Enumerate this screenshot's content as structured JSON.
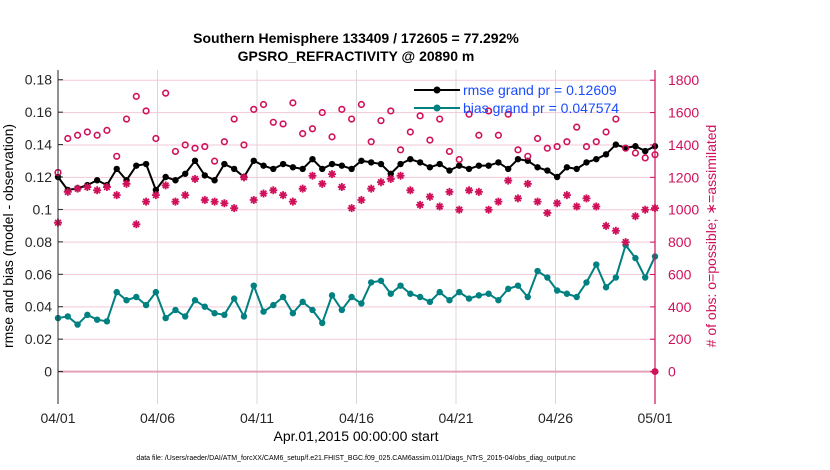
{
  "chart_data": {
    "type": "line",
    "title": "Southern Hemisphere 133409 / 172605 = 77.292%",
    "subtitle": "GPSRO_REFRACTIVITY @ 20890 m",
    "xlabel": "Apr.01,2015 00:00:00 start",
    "ylabel": "rmse and bias (model - observation)",
    "ylabel_right": "# of obs: o=possible; ∗=assimilated",
    "footnote": "data file: /Users/raeder/DAI/ATM_forcXX/CAM6_setup/f.e21.FHIST_BGC.f09_025.CAM6assim.011/Diags_NTrS_2015-04/obs_diag_output.nc",
    "x_range_days": [
      0,
      30
    ],
    "x_ticks": [
      {
        "day": 0,
        "label": "04/01"
      },
      {
        "day": 5,
        "label": "04/06"
      },
      {
        "day": 10,
        "label": "04/11"
      },
      {
        "day": 15,
        "label": "04/16"
      },
      {
        "day": 20,
        "label": "04/21"
      },
      {
        "day": 25,
        "label": "04/26"
      },
      {
        "day": 30,
        "label": "05/01"
      }
    ],
    "ylim": [
      -0.02,
      0.186
    ],
    "y_ticks": [
      "0",
      "0.02",
      "0.04",
      "0.06",
      "0.08",
      "0.1",
      "0.12",
      "0.14",
      "0.16",
      "0.18"
    ],
    "ylim_right": [
      -200,
      1863
    ],
    "y_ticks_right": [
      "0",
      "200",
      "400",
      "600",
      "800",
      "1000",
      "1200",
      "1400",
      "1600",
      "1800"
    ],
    "legend_position": "top-right",
    "legend": [
      "rmse grand pr = 0.12609",
      "bias grand pr = 0.047574"
    ],
    "colors": {
      "rmse": "#000000",
      "bias": "#008080",
      "obs": "#d0105a",
      "legend_text": "#1a4cff",
      "grid_h": "#f3c9d8",
      "grid_v": "#d8d8d8"
    },
    "series": [
      {
        "name": "rmse",
        "axis": "left",
        "style": "line-dot",
        "values": [
          0.12,
          0.112,
          0.113,
          0.115,
          0.118,
          0.115,
          0.125,
          0.118,
          0.127,
          0.128,
          0.112,
          0.12,
          0.118,
          0.122,
          0.13,
          0.121,
          0.118,
          0.128,
          0.125,
          0.12,
          0.13,
          0.127,
          0.125,
          0.128,
          0.126,
          0.125,
          0.131,
          0.125,
          0.128,
          0.127,
          0.125,
          0.13,
          0.129,
          0.128,
          0.122,
          0.128,
          0.131,
          0.129,
          0.126,
          0.128,
          0.124,
          0.127,
          0.125,
          0.127,
          0.127,
          0.129,
          0.125,
          0.131,
          0.13,
          0.126,
          0.124,
          0.12,
          0.126,
          0.125,
          0.129,
          0.131,
          0.134,
          0.14,
          0.138,
          0.139,
          0.136,
          0.139
        ]
      },
      {
        "name": "bias",
        "axis": "left",
        "style": "line-dot",
        "values": [
          0.033,
          0.034,
          0.029,
          0.035,
          0.032,
          0.031,
          0.049,
          0.044,
          0.046,
          0.041,
          0.049,
          0.033,
          0.038,
          0.034,
          0.044,
          0.04,
          0.036,
          0.035,
          0.045,
          0.034,
          0.053,
          0.037,
          0.041,
          0.046,
          0.036,
          0.043,
          0.038,
          0.03,
          0.047,
          0.038,
          0.046,
          0.042,
          0.055,
          0.056,
          0.048,
          0.053,
          0.048,
          0.046,
          0.043,
          0.049,
          0.044,
          0.049,
          0.045,
          0.047,
          0.048,
          0.044,
          0.051,
          0.053,
          0.046,
          0.062,
          0.058,
          0.05,
          0.048,
          0.046,
          0.055,
          0.066,
          0.052,
          0.058,
          0.078,
          0.07,
          0.058,
          0.071
        ]
      },
      {
        "name": "possible",
        "axis": "right",
        "style": "circle",
        "values": [
          1230,
          1440,
          1460,
          1480,
          1460,
          1490,
          1330,
          1560,
          1700,
          1610,
          1440,
          1720,
          1360,
          1400,
          1380,
          1390,
          1300,
          1420,
          1560,
          1400,
          1620,
          1650,
          1540,
          1530,
          1660,
          1470,
          1500,
          1600,
          1450,
          1620,
          1560,
          1650,
          1420,
          1550,
          1610,
          1370,
          1480,
          1580,
          1430,
          1560,
          1360,
          1310,
          1590,
          1460,
          1610,
          1460,
          1590,
          1370,
          1330,
          1440,
          1380,
          1390,
          1420,
          1510,
          1390,
          1420,
          1480,
          1560,
          1380,
          1350,
          1320,
          1340
        ]
      },
      {
        "name": "assimilated",
        "axis": "right",
        "style": "asterisk",
        "values": [
          920,
          1110,
          1130,
          1140,
          1120,
          1140,
          1090,
          1160,
          910,
          1050,
          1090,
          1150,
          1050,
          1090,
          1190,
          1060,
          1050,
          1040,
          1010,
          1200,
          1060,
          1100,
          1120,
          1090,
          1050,
          1130,
          1210,
          1160,
          1220,
          1140,
          1010,
          1060,
          1130,
          1170,
          1190,
          1210,
          1120,
          1030,
          1080,
          1020,
          1110,
          1000,
          1120,
          1110,
          1000,
          1050,
          1180,
          1070,
          1160,
          1050,
          980,
          1040,
          1090,
          1020,
          1070,
          1020,
          900,
          870,
          800,
          960,
          1000,
          1010
        ]
      }
    ]
  }
}
